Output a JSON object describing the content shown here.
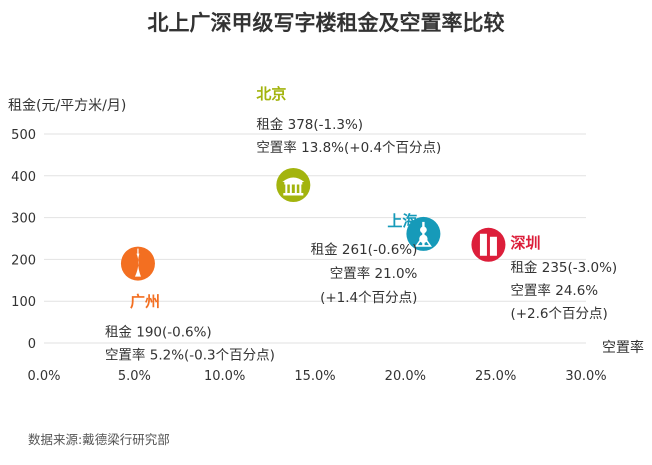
{
  "chart_data": {
    "type": "scatter",
    "title": "北上广深甲级写字楼租金及空置率比较",
    "xlabel": "空置率",
    "ylabel": "租金(元/平方米/月)",
    "xlim": [
      0,
      30
    ],
    "ylim": [
      0,
      500
    ],
    "x_ticks": [
      "0.0%",
      "5.0%",
      "10.0%",
      "15.0%",
      "20.0%",
      "25.0%",
      "30.0%"
    ],
    "y_ticks": [
      "0",
      "100",
      "200",
      "300",
      "400",
      "500"
    ],
    "grid": true,
    "points": [
      {
        "city": "北京",
        "x": 13.8,
        "y": 378,
        "color": "#a3b40e",
        "icon": "temple-icon",
        "lines": [
          "租金 378(-1.3%)",
          "空置率 13.8%(+0.4个百分点)"
        ]
      },
      {
        "city": "上海",
        "x": 21.0,
        "y": 261,
        "color": "#169ab9",
        "icon": "tower-icon",
        "lines": [
          "租金 261(-0.6%)",
          "空置率 21.0%",
          "(+1.4个百分点)"
        ]
      },
      {
        "city": "广州",
        "x": 5.2,
        "y": 190,
        "color": "#f36f21",
        "icon": "canton-tower-icon",
        "lines": [
          "租金 190(-0.6%)",
          "空置率 5.2%(-0.3个百分点)"
        ]
      },
      {
        "city": "深圳",
        "x": 24.6,
        "y": 235,
        "color": "#dc1e3a",
        "icon": "skyscraper-icon",
        "lines": [
          "租金 235(-3.0%)",
          "空置率 24.6%",
          "(+2.6个百分点)"
        ]
      }
    ],
    "source": "数据来源:戴德梁行研究部"
  }
}
